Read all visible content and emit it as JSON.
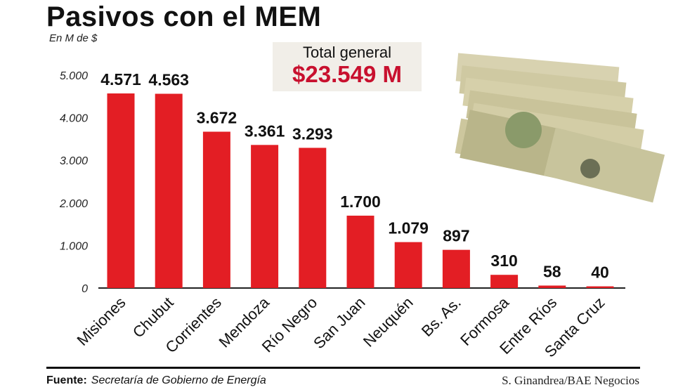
{
  "chart_data": {
    "type": "bar",
    "title": "Pasivos con el MEM",
    "ylabel": "En M de $",
    "categories": [
      "Misiones",
      "Chubut",
      "Corrientes",
      "Mendoza",
      "Río Negro",
      "San Juan",
      "Neuquén",
      "Bs. As.",
      "Formosa",
      "Entre Ríos",
      "Santa Cruz"
    ],
    "values": [
      4571,
      4563,
      3672,
      3361,
      3293,
      1700,
      1079,
      897,
      310,
      58,
      40
    ],
    "value_labels": [
      "4.571",
      "4.563",
      "3.672",
      "3.361",
      "3.293",
      "1.700",
      "1.079",
      "897",
      "310",
      "58",
      "40"
    ],
    "yticks": [
      "0",
      "1.000",
      "2.000",
      "3.000",
      "4.000",
      "5.000"
    ],
    "ytick_values": [
      0,
      1000,
      2000,
      3000,
      4000,
      5000
    ],
    "ylim": [
      0,
      5000
    ],
    "grid": false,
    "bar_color": "#e31e24"
  },
  "total": {
    "label": "Total general",
    "value": "$23.549 M"
  },
  "footer": {
    "source_label": "Fuente:",
    "source": "Secretaría de Gobierno de Energía",
    "credit": "S. Ginandrea/BAE Negocios"
  }
}
